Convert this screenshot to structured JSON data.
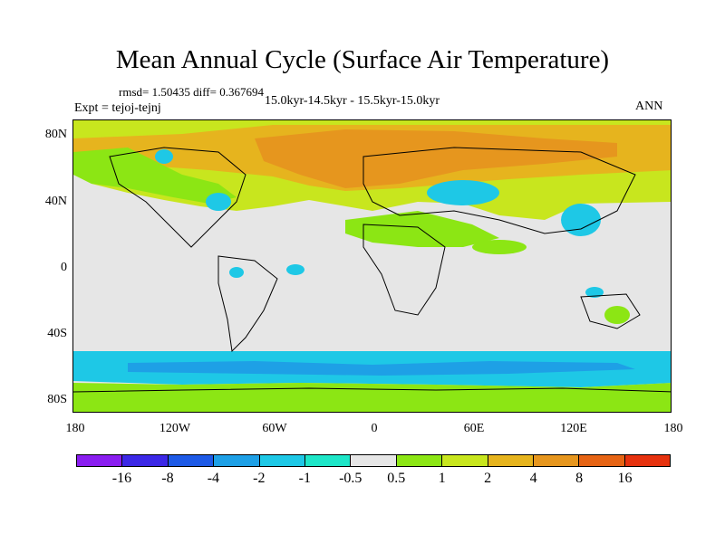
{
  "title": "Mean Annual Cycle (Surface Air Temperature)",
  "stats": "rmsd= 1.50435 diff= 0.367694",
  "experiment": "Expt = tejoj-tejnj",
  "period": "15.0kyr-14.5kyr - 15.5kyr-15.0kyr",
  "season": "ANN",
  "lat_labels": [
    "80N",
    "40N",
    "0",
    "40S",
    "80S"
  ],
  "lon_labels": [
    "180",
    "120W",
    "60W",
    "0",
    "60E",
    "120E",
    "180"
  ],
  "colorbar": {
    "labels": [
      "-16",
      "-8",
      "-4",
      "-2",
      "-1",
      "-0.5",
      "0.5",
      "1",
      "2",
      "4",
      "8",
      "16"
    ],
    "colors": [
      "#8a1ef0",
      "#3c28e6",
      "#1e5ae6",
      "#1ea0e6",
      "#1ec8e6",
      "#1ee6c8",
      "#e6e6e6",
      "#8ce614",
      "#c8e61e",
      "#e6b41e",
      "#e6961e",
      "#e66414",
      "#e6320f"
    ]
  },
  "map_colors": {
    "ocean_neutral": "#e6e6e6",
    "warm_strong": "#e6961e",
    "warm_mid": "#e6b41e",
    "warm_light": "#c8e61e",
    "green": "#8ce614",
    "cyan": "#1ec8e6",
    "cool": "#1ea0e6"
  }
}
